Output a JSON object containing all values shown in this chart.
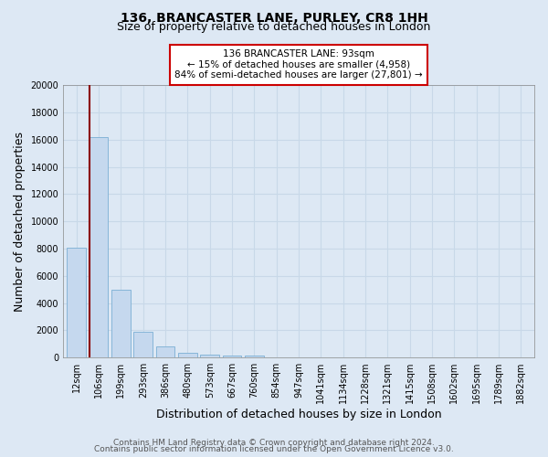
{
  "title": "136, BRANCASTER LANE, PURLEY, CR8 1HH",
  "subtitle": "Size of property relative to detached houses in London",
  "xlabel": "Distribution of detached houses by size in London",
  "ylabel": "Number of detached properties",
  "categories": [
    "12sqm",
    "106sqm",
    "199sqm",
    "293sqm",
    "386sqm",
    "480sqm",
    "573sqm",
    "667sqm",
    "760sqm",
    "854sqm",
    "947sqm",
    "1041sqm",
    "1134sqm",
    "1228sqm",
    "1321sqm",
    "1415sqm",
    "1508sqm",
    "1602sqm",
    "1695sqm",
    "1789sqm",
    "1882sqm"
  ],
  "values": [
    8050,
    16200,
    5000,
    1900,
    800,
    370,
    190,
    120,
    110,
    0,
    0,
    0,
    0,
    0,
    0,
    0,
    0,
    0,
    0,
    0,
    0
  ],
  "bar_color": "#c5d8ee",
  "bar_edge_color": "#7bafd4",
  "property_line_color": "#8b0000",
  "annotation_title": "136 BRANCASTER LANE: 93sqm",
  "annotation_line1": "← 15% of detached houses are smaller (4,958)",
  "annotation_line2": "84% of semi-detached houses are larger (27,801) →",
  "annotation_box_facecolor": "#ffffff",
  "annotation_box_edgecolor": "#cc0000",
  "ylim": [
    0,
    20000
  ],
  "yticks": [
    0,
    2000,
    4000,
    6000,
    8000,
    10000,
    12000,
    14000,
    16000,
    18000,
    20000
  ],
  "footer1": "Contains HM Land Registry data © Crown copyright and database right 2024.",
  "footer2": "Contains public sector information licensed under the Open Government Licence v3.0.",
  "bg_color": "#dde8f4",
  "plot_bg_color": "#dde8f4",
  "grid_color": "#c8d8e8",
  "title_fontsize": 10,
  "subtitle_fontsize": 9,
  "axis_label_fontsize": 9,
  "tick_fontsize": 7,
  "footer_fontsize": 6.5,
  "annotation_fontsize": 7.5
}
